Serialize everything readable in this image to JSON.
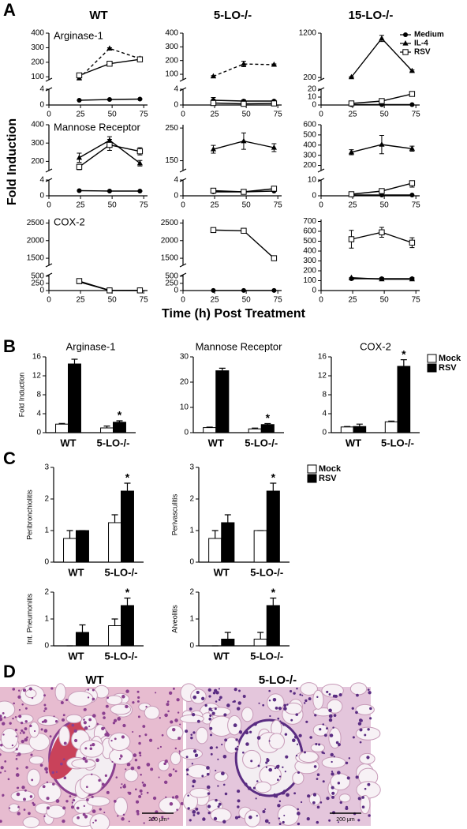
{
  "panel_labels": [
    "A",
    "B",
    "C",
    "D"
  ],
  "panel_a": {
    "columns": [
      "WT",
      "5-LO-/-",
      "15-LO-/-"
    ],
    "ylabel": "Fold Induction",
    "xlabel": "Time (h) Post Treatment"
  },
  "panel_d": {
    "titles": [
      "WT",
      "5-LO-/-"
    ],
    "scale_bars": [
      "200 μm",
      "200 μm"
    ]
  },
  "chart_data": [
    {
      "type": "line",
      "title": "Arginase-1",
      "x": [
        24,
        48,
        72
      ],
      "xlim": [
        0,
        78
      ],
      "xticks": [
        0,
        25,
        50,
        75
      ],
      "ylim": [
        0,
        400
      ],
      "ybreak": [
        4,
        80
      ],
      "yticks": [
        0,
        4,
        100,
        200,
        300,
        400
      ],
      "series": [
        {
          "name": "Medium",
          "marker": "circle",
          "values": [
            1.2,
            1.4,
            1.5
          ],
          "errors": [
            0.1,
            0.1,
            0.1
          ]
        },
        {
          "name": "IL-4",
          "marker": "triangle",
          "linestyle": "dashed",
          "values": [
            90,
            295,
            225
          ],
          "errors": [
            8,
            5,
            10
          ]
        },
        {
          "name": "RSV",
          "marker": "square",
          "values": [
            110,
            190,
            220
          ],
          "errors": [
            10,
            15,
            12
          ]
        }
      ]
    },
    {
      "type": "line",
      "x": [
        24,
        48,
        72
      ],
      "xlim": [
        0,
        78
      ],
      "xticks": [
        0,
        25,
        50,
        75
      ],
      "ylim": [
        0,
        400
      ],
      "ybreak": [
        4,
        60
      ],
      "yticks": [
        0,
        4,
        100,
        200,
        300,
        400
      ],
      "series": [
        {
          "name": "Medium",
          "marker": "circle",
          "values": [
            1.2,
            1.0,
            1.0
          ],
          "errors": [
            0.7,
            0.3,
            0.2
          ]
        },
        {
          "name": "IL-4",
          "marker": "triangle",
          "linestyle": "dashed",
          "values": [
            85,
            175,
            170
          ],
          "errors": [
            5,
            20,
            5
          ]
        },
        {
          "name": "RSV",
          "marker": "square",
          "values": [
            0.5,
            0.3,
            0.4
          ],
          "errors": [
            0.4,
            0.3,
            0.3
          ]
        }
      ]
    },
    {
      "type": "line",
      "legend": true,
      "x": [
        24,
        48,
        72
      ],
      "xlim": [
        0,
        78
      ],
      "xticks": [
        0,
        25,
        50,
        75
      ],
      "ylim": [
        0,
        1200
      ],
      "ybreak": [
        20,
        150
      ],
      "yticks": [
        0,
        10,
        20,
        200,
        1200
      ],
      "series": [
        {
          "name": "Medium",
          "marker": "circle",
          "values": [
            0.5,
            0.5,
            0.5
          ]
        },
        {
          "name": "IL-4",
          "marker": "triangle",
          "values": [
            210,
            1080,
            350
          ],
          "errors": [
            10,
            70,
            20
          ]
        },
        {
          "name": "RSV",
          "marker": "square",
          "values": [
            2,
            5,
            14
          ],
          "errors": [
            1,
            1.5,
            3
          ]
        }
      ]
    },
    {
      "type": "line",
      "title": "Mannose Receptor",
      "x": [
        24,
        48,
        72
      ],
      "xlim": [
        0,
        78
      ],
      "xticks": [
        0,
        25,
        50,
        75
      ],
      "ylim": [
        0,
        400
      ],
      "ybreak": [
        4,
        150
      ],
      "yticks": [
        0,
        4,
        200,
        300,
        400
      ],
      "series": [
        {
          "name": "Medium",
          "marker": "circle",
          "values": [
            1.3,
            1.2,
            1.2
          ],
          "errors": [
            0.1,
            0.1,
            0.1
          ]
        },
        {
          "name": "IL-4",
          "marker": "triangle",
          "values": [
            220,
            315,
            190
          ],
          "errors": [
            25,
            20,
            15
          ]
        },
        {
          "name": "RSV",
          "marker": "square",
          "values": [
            170,
            290,
            255
          ],
          "errors": [
            15,
            30,
            20
          ]
        }
      ]
    },
    {
      "type": "line",
      "x": [
        24,
        48,
        72
      ],
      "xlim": [
        0,
        78
      ],
      "xticks": [
        0,
        25,
        50,
        75
      ],
      "ylim": [
        0,
        260
      ],
      "ybreak": [
        4,
        120
      ],
      "yticks": [
        0,
        4,
        150,
        250
      ],
      "series": [
        {
          "name": "Medium",
          "marker": "circle",
          "values": [
            1.0,
            1.0,
            1.2
          ],
          "errors": [
            0.1,
            0.1,
            0.1
          ]
        },
        {
          "name": "IL-4",
          "marker": "triangle",
          "values": [
            185,
            210,
            190
          ],
          "errors": [
            12,
            25,
            12
          ]
        },
        {
          "name": "RSV",
          "marker": "square",
          "values": [
            1.3,
            1.0,
            1.8
          ],
          "errors": [
            0.3,
            0.2,
            0.3
          ]
        }
      ]
    },
    {
      "type": "line",
      "x": [
        24,
        48,
        72
      ],
      "xlim": [
        0,
        78
      ],
      "xticks": [
        0,
        25,
        50,
        75
      ],
      "ylim": [
        0,
        600
      ],
      "ybreak": [
        10,
        150
      ],
      "yticks": [
        0,
        10,
        200,
        300,
        400,
        500,
        600
      ],
      "series": [
        {
          "name": "Medium",
          "marker": "circle",
          "values": [
            0.5,
            0.5,
            0.5
          ]
        },
        {
          "name": "IL-4",
          "marker": "triangle",
          "values": [
            330,
            405,
            365
          ],
          "errors": [
            25,
            90,
            25
          ]
        },
        {
          "name": "RSV",
          "marker": "square",
          "values": [
            1,
            3,
            8
          ],
          "errors": [
            0.5,
            1,
            2.5
          ]
        }
      ]
    },
    {
      "type": "line",
      "title": "COX-2",
      "x": [
        24,
        48,
        72
      ],
      "xlim": [
        0,
        78
      ],
      "xticks": [
        0,
        25,
        50,
        75
      ],
      "ylim": [
        0,
        2600
      ],
      "ybreak": [
        550,
        1300
      ],
      "yticks": [
        0,
        250,
        500,
        1500,
        2000,
        2500
      ],
      "series": [
        {
          "name": "Medium",
          "marker": "circle",
          "values": [
            320,
            5,
            3
          ]
        },
        {
          "name": "IL-4",
          "marker": "triangle",
          "values": [
            300,
            3,
            2
          ]
        },
        {
          "name": "RSV",
          "marker": "square",
          "values": [
            330,
            5,
            5
          ],
          "errors": [
            80,
            5,
            5
          ]
        }
      ]
    },
    {
      "type": "line",
      "x": [
        24,
        48,
        72
      ],
      "xlim": [
        0,
        78
      ],
      "xticks": [
        0,
        25,
        50,
        75
      ],
      "ylim": [
        0,
        2600
      ],
      "ybreak": [
        550,
        1300
      ],
      "yticks": [
        0,
        250,
        500,
        1500,
        2000,
        2500
      ],
      "series": [
        {
          "name": "Medium",
          "marker": "circle",
          "values": [
            3,
            2,
            2
          ]
        },
        {
          "name": "RSV",
          "marker": "square",
          "values": [
            2300,
            2280,
            1500
          ],
          "errors": [
            40,
            40,
            40
          ]
        }
      ]
    },
    {
      "type": "line",
      "x": [
        24,
        48,
        72
      ],
      "xlim": [
        0,
        78
      ],
      "xticks": [
        0,
        25,
        50,
        75
      ],
      "ylim": [
        0,
        720
      ],
      "yticks": [
        0,
        100,
        200,
        300,
        400,
        500,
        600,
        700
      ],
      "series": [
        {
          "name": "Medium",
          "marker": "circle",
          "values": [
            120,
            120,
            120
          ],
          "errors": [
            10,
            10,
            10
          ]
        },
        {
          "name": "IL-4",
          "marker": "triangle",
          "values": [
            130,
            115,
            115
          ]
        },
        {
          "name": "RSV",
          "marker": "square",
          "values": [
            520,
            590,
            485
          ],
          "errors": [
            90,
            50,
            50
          ]
        }
      ]
    },
    {
      "type": "bar",
      "title": "Arginase-1",
      "ylabel": "Fold Induction",
      "categories": [
        "WT",
        "5-LO-/-"
      ],
      "ylim": [
        0,
        16
      ],
      "yticks": [
        0,
        4,
        8,
        12,
        16
      ],
      "series": [
        {
          "name": "Mock",
          "color": "#ffffff",
          "values": [
            1.8,
            1.0
          ],
          "errors": [
            0.15,
            0.4
          ]
        },
        {
          "name": "RSV",
          "color": "#000000",
          "values": [
            14.5,
            2.2
          ],
          "errors": [
            1.0,
            0.3
          ]
        }
      ],
      "annotations": [
        {
          "text": "*",
          "series": 1,
          "category": 1
        }
      ]
    },
    {
      "type": "bar",
      "title": "Mannose Receptor",
      "categories": [
        "WT",
        "5-LO-/-"
      ],
      "ylim": [
        0,
        30
      ],
      "yticks": [
        0,
        10,
        20,
        30
      ],
      "series": [
        {
          "name": "Mock",
          "color": "#ffffff",
          "values": [
            2.0,
            1.5
          ],
          "errors": [
            0.2,
            0.3
          ]
        },
        {
          "name": "RSV",
          "color": "#000000",
          "values": [
            24.5,
            3.2
          ],
          "errors": [
            1.0,
            0.4
          ]
        }
      ],
      "annotations": [
        {
          "text": "*",
          "series": 1,
          "category": 1
        }
      ]
    },
    {
      "type": "bar",
      "title": "COX-2",
      "legend": true,
      "categories": [
        "WT",
        "5-LO-/-"
      ],
      "ylim": [
        0,
        16
      ],
      "yticks": [
        0,
        4,
        8,
        12,
        16
      ],
      "series": [
        {
          "name": "Mock",
          "color": "#ffffff",
          "values": [
            1.2,
            2.3
          ],
          "errors": [
            0.1,
            0.15
          ]
        },
        {
          "name": "RSV",
          "color": "#000000",
          "values": [
            1.3,
            14
          ],
          "errors": [
            0.5,
            1.4
          ]
        }
      ],
      "annotations": [
        {
          "text": "*",
          "series": 1,
          "category": 1
        }
      ]
    },
    {
      "type": "bar",
      "ylabel": "Peribronchiolitis",
      "legend": true,
      "categories": [
        "WT",
        "5-LO-/-"
      ],
      "ylim": [
        0,
        3
      ],
      "yticks": [
        0,
        1,
        2,
        3
      ],
      "series": [
        {
          "name": "Mock",
          "color": "#ffffff",
          "values": [
            0.75,
            1.25
          ],
          "errors": [
            0.25,
            0.25
          ]
        },
        {
          "name": "RSV",
          "color": "#000000",
          "values": [
            1.0,
            2.25
          ],
          "errors": [
            0,
            0.25
          ]
        }
      ],
      "annotations": [
        {
          "text": "*",
          "series": 1,
          "category": 1
        }
      ]
    },
    {
      "type": "bar",
      "ylabel": "Perivasculitis",
      "categories": [
        "WT",
        "5-LO-/-"
      ],
      "ylim": [
        0,
        3
      ],
      "yticks": [
        0,
        1,
        2,
        3
      ],
      "series": [
        {
          "name": "Mock",
          "color": "#ffffff",
          "values": [
            0.75,
            1.0
          ],
          "errors": [
            0.25,
            0
          ]
        },
        {
          "name": "RSV",
          "color": "#000000",
          "values": [
            1.25,
            2.25
          ],
          "errors": [
            0.25,
            0.25
          ]
        }
      ],
      "annotations": [
        {
          "text": "*",
          "series": 1,
          "category": 1
        }
      ]
    },
    {
      "type": "bar",
      "ylabel": "Int. Pneumonitis",
      "categories": [
        "WT",
        "5-LO-/-"
      ],
      "ylim": [
        0,
        2
      ],
      "yticks": [
        0,
        1,
        2
      ],
      "series": [
        {
          "name": "Mock",
          "color": "#ffffff",
          "values": [
            0,
            0.75
          ],
          "errors": [
            0,
            0.25
          ]
        },
        {
          "name": "RSV",
          "color": "#000000",
          "values": [
            0.5,
            1.5
          ],
          "errors": [
            0.28,
            0.28
          ]
        }
      ],
      "annotations": [
        {
          "text": "*",
          "series": 1,
          "category": 1
        }
      ]
    },
    {
      "type": "bar",
      "ylabel": "Alveolitis",
      "categories": [
        "WT",
        "5-LO-/-"
      ],
      "ylim": [
        0,
        2
      ],
      "yticks": [
        0,
        1,
        2
      ],
      "series": [
        {
          "name": "Mock",
          "color": "#ffffff",
          "values": [
            0,
            0.25
          ],
          "errors": [
            0,
            0.25
          ]
        },
        {
          "name": "RSV",
          "color": "#000000",
          "values": [
            0.25,
            1.5
          ],
          "errors": [
            0.25,
            0.28
          ]
        }
      ],
      "annotations": [
        {
          "text": "*",
          "series": 1,
          "category": 1
        }
      ]
    }
  ]
}
